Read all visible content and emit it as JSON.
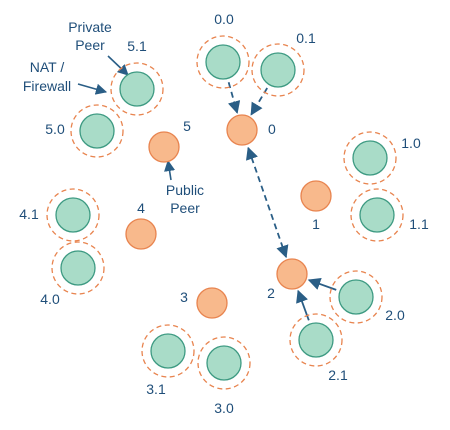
{
  "colors": {
    "public_fill": "#f8b98c",
    "public_stroke": "#e8844f",
    "private_fill": "#a9dcc8",
    "private_stroke": "#3d9a82",
    "nat_ring": "#e8844f",
    "label": "#1f4e79",
    "arrow": "#2a5e86"
  },
  "annotations": {
    "private_peer": [
      "Private",
      "Peer"
    ],
    "nat_firewall": [
      "NAT /",
      "Firewall"
    ],
    "public_peer": [
      "Public",
      "Peer"
    ]
  },
  "public_peers": [
    "0",
    "1",
    "2",
    "3",
    "4",
    "5"
  ],
  "private_peers": [
    "0.0",
    "0.1",
    "1.0",
    "1.1",
    "2.0",
    "2.1",
    "3.0",
    "3.1",
    "4.0",
    "4.1",
    "5.0",
    "5.1"
  ],
  "connections": [
    {
      "from": "0.0",
      "to": "0",
      "style": "dashed",
      "direction": "to"
    },
    {
      "from": "0.1",
      "to": "0",
      "style": "dashed",
      "direction": "to"
    },
    {
      "from": "0",
      "to": "2",
      "style": "dashed",
      "direction": "both"
    },
    {
      "from": "2.0",
      "to": "2",
      "style": "solid",
      "direction": "to"
    },
    {
      "from": "2.1",
      "to": "2",
      "style": "solid",
      "direction": "to"
    }
  ]
}
